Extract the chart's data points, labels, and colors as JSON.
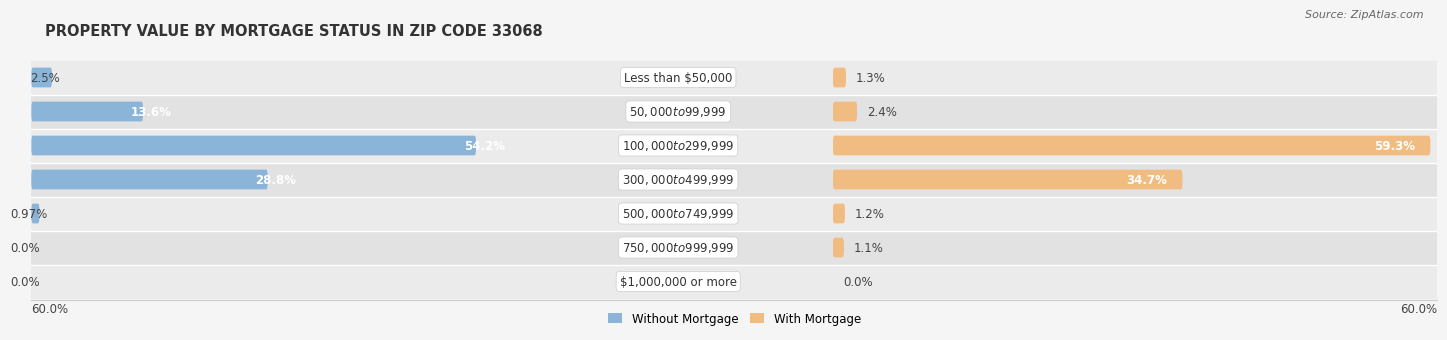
{
  "title": "PROPERTY VALUE BY MORTGAGE STATUS IN ZIP CODE 33068",
  "source": "Source: ZipAtlas.com",
  "categories": [
    "Less than $50,000",
    "$50,000 to $99,999",
    "$100,000 to $299,999",
    "$300,000 to $499,999",
    "$500,000 to $749,999",
    "$750,000 to $999,999",
    "$1,000,000 or more"
  ],
  "without_mortgage": [
    2.5,
    13.6,
    54.2,
    28.8,
    0.97,
    0.0,
    0.0
  ],
  "with_mortgage": [
    1.3,
    2.4,
    59.3,
    34.7,
    1.2,
    1.1,
    0.0
  ],
  "color_without": "#8ab4d8",
  "color_with": "#f0bc82",
  "xlim": 60.0,
  "axis_label_left": "60.0%",
  "axis_label_right": "60.0%",
  "row_colors": [
    "#ebebeb",
    "#e2e2e2"
  ],
  "legend_without": "Without Mortgage",
  "legend_with": "With Mortgage",
  "title_fontsize": 10.5,
  "source_fontsize": 8,
  "label_fontsize": 8.5,
  "category_fontsize": 8.5,
  "bar_height": 0.58
}
